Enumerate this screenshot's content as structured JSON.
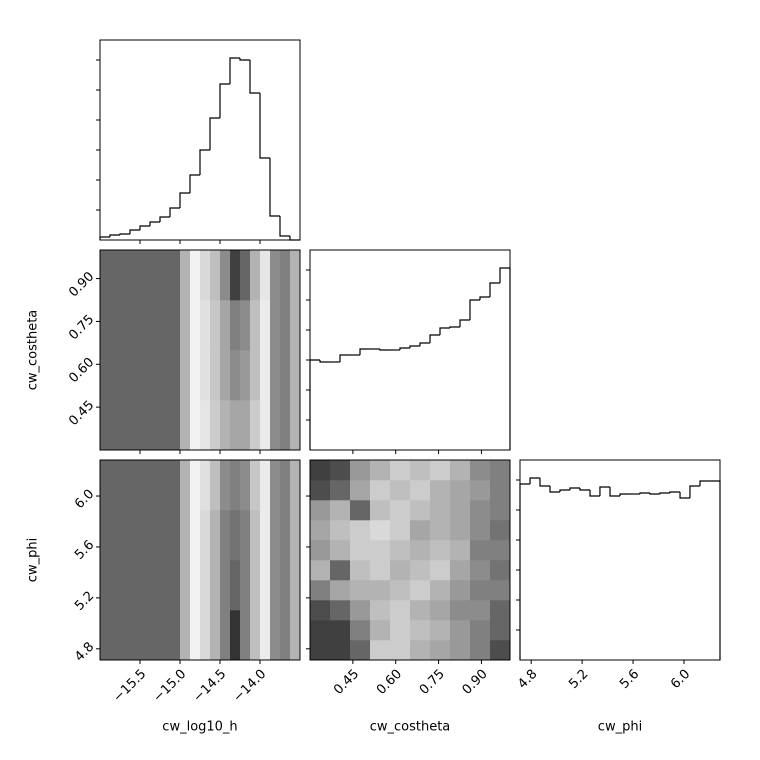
{
  "chart_data": [
    {
      "type": "histogram",
      "color": "#000000",
      "bins": [
        -16,
        -15.875,
        -15.75,
        -15.625,
        -15.5,
        -15.375,
        -15.25,
        -15.125,
        -15,
        -14.875,
        -14.75,
        -14.625,
        -14.5,
        -14.375,
        -14.25,
        -14.125,
        -14,
        -13.875,
        -13.75,
        -13.625,
        -13.5
      ],
      "values": [
        3,
        5,
        6,
        10,
        14,
        18,
        23,
        32,
        47,
        65,
        90,
        122,
        156,
        182,
        180,
        147,
        82,
        24,
        4,
        0
      ],
      "xlim": [
        -16,
        -13.5
      ],
      "xticks": [
        -15.5,
        -15,
        -14.5,
        -14
      ],
      "ylim": [
        0,
        200
      ],
      "yticks": [
        30,
        60,
        90,
        120,
        150,
        180
      ]
    },
    {
      "type": "density",
      "xlim": [
        -16,
        -13.5
      ],
      "xticks": [
        -15.5,
        -15,
        -14.5,
        -14
      ],
      "ylim": [
        0.3,
        1.0
      ],
      "yticks": [
        {
          "value": 0.45,
          "label": "0.45"
        },
        {
          "value": 0.6,
          "label": "0.60"
        },
        {
          "value": 0.75,
          "label": "0.75"
        },
        {
          "value": 0.9,
          "label": "0.90"
        }
      ],
      "ylabel": "cw_costheta",
      "z": [
        [
          0.6,
          0.6,
          0.6,
          0.6,
          0.6,
          0.6,
          0.6,
          0.6,
          0.3,
          0.05,
          0.1,
          0.2,
          0.3,
          0.35,
          0.35,
          0.2,
          0.08,
          0.45,
          0.5,
          0.3
        ],
        [
          0.6,
          0.6,
          0.6,
          0.6,
          0.6,
          0.6,
          0.6,
          0.6,
          0.3,
          0.05,
          0.12,
          0.22,
          0.35,
          0.45,
          0.4,
          0.25,
          0.08,
          0.45,
          0.5,
          0.3
        ],
        [
          0.6,
          0.6,
          0.6,
          0.6,
          0.6,
          0.6,
          0.6,
          0.6,
          0.3,
          0.05,
          0.12,
          0.22,
          0.35,
          0.5,
          0.45,
          0.25,
          0.08,
          0.45,
          0.5,
          0.3
        ],
        [
          0.6,
          0.6,
          0.6,
          0.6,
          0.6,
          0.6,
          0.6,
          0.6,
          0.3,
          0.05,
          0.15,
          0.25,
          0.45,
          0.75,
          0.6,
          0.3,
          0.1,
          0.45,
          0.5,
          0.3
        ]
      ]
    },
    {
      "type": "histogram",
      "color": "#000000",
      "bins": [
        0.3,
        0.335,
        0.37,
        0.405,
        0.44,
        0.475,
        0.51,
        0.545,
        0.58,
        0.615,
        0.65,
        0.685,
        0.72,
        0.755,
        0.79,
        0.825,
        0.86,
        0.895,
        0.93,
        0.965,
        1.0
      ],
      "values": [
        90,
        88,
        88,
        95,
        95,
        101,
        101,
        100,
        100,
        102,
        104,
        107,
        115,
        122,
        123,
        130,
        150,
        153,
        167,
        182
      ],
      "xlim": [
        0.3,
        1.0
      ],
      "xticks": [
        0.45,
        0.6,
        0.75,
        0.9
      ],
      "ylim": [
        0,
        200
      ],
      "yticks": [
        30,
        60,
        90,
        120,
        150,
        180
      ]
    },
    {
      "type": "density",
      "xlim": [
        -16,
        -13.5
      ],
      "xticks": [
        {
          "value": -15.5,
          "label": "−15.5"
        },
        {
          "value": -15,
          "label": "−15.0"
        },
        {
          "value": -14.5,
          "label": "−14.5"
        },
        {
          "value": -14,
          "label": "−14.0"
        }
      ],
      "xlabel": "cw_log10_h",
      "ylim": [
        4.712,
        6.283
      ],
      "yticks": [
        4.8,
        5.2,
        5.6,
        {
          "value": 6,
          "label": "6.0"
        }
      ],
      "ylabel": "cw_phi",
      "z": [
        [
          0.6,
          0.6,
          0.6,
          0.6,
          0.6,
          0.6,
          0.6,
          0.6,
          0.3,
          0.05,
          0.15,
          0.3,
          0.5,
          0.8,
          0.5,
          0.25,
          0.08,
          0.45,
          0.5,
          0.3
        ],
        [
          0.6,
          0.6,
          0.6,
          0.6,
          0.6,
          0.6,
          0.6,
          0.6,
          0.3,
          0.05,
          0.15,
          0.3,
          0.5,
          0.6,
          0.5,
          0.25,
          0.08,
          0.45,
          0.5,
          0.3
        ],
        [
          0.6,
          0.6,
          0.6,
          0.6,
          0.6,
          0.6,
          0.6,
          0.6,
          0.3,
          0.05,
          0.15,
          0.3,
          0.5,
          0.55,
          0.5,
          0.25,
          0.08,
          0.45,
          0.5,
          0.3
        ],
        [
          0.6,
          0.6,
          0.6,
          0.6,
          0.6,
          0.6,
          0.6,
          0.6,
          0.3,
          0.05,
          0.12,
          0.25,
          0.45,
          0.5,
          0.45,
          0.22,
          0.08,
          0.45,
          0.5,
          0.3
        ]
      ]
    },
    {
      "type": "density",
      "xlim": [
        0.3,
        1.0
      ],
      "xticks": [
        {
          "value": 0.45,
          "label": "0.45"
        },
        {
          "value": 0.6,
          "label": "0.60"
        },
        {
          "value": 0.75,
          "label": "0.75"
        },
        {
          "value": 0.9,
          "label": "0.90"
        }
      ],
      "xlabel": "cw_costheta",
      "ylim": [
        4.712,
        6.283
      ],
      "yticks": [
        4.8,
        5.2,
        5.6,
        6
      ],
      "z": [
        [
          0.75,
          0.75,
          0.6,
          0.2,
          0.2,
          0.3,
          0.35,
          0.4,
          0.5,
          0.7
        ],
        [
          0.75,
          0.75,
          0.5,
          0.3,
          0.2,
          0.25,
          0.3,
          0.4,
          0.5,
          0.6
        ],
        [
          0.7,
          0.6,
          0.4,
          0.25,
          0.2,
          0.3,
          0.35,
          0.45,
          0.45,
          0.6
        ],
        [
          0.5,
          0.35,
          0.3,
          0.3,
          0.25,
          0.2,
          0.3,
          0.4,
          0.5,
          0.5
        ],
        [
          0.3,
          0.6,
          0.25,
          0.2,
          0.3,
          0.25,
          0.2,
          0.35,
          0.45,
          0.55
        ],
        [
          0.4,
          0.3,
          0.2,
          0.2,
          0.25,
          0.3,
          0.25,
          0.3,
          0.5,
          0.5
        ],
        [
          0.35,
          0.25,
          0.2,
          0.15,
          0.2,
          0.35,
          0.3,
          0.35,
          0.45,
          0.55
        ],
        [
          0.4,
          0.3,
          0.6,
          0.25,
          0.2,
          0.25,
          0.3,
          0.35,
          0.45,
          0.5
        ],
        [
          0.7,
          0.6,
          0.35,
          0.2,
          0.25,
          0.2,
          0.3,
          0.35,
          0.4,
          0.5
        ],
        [
          0.75,
          0.7,
          0.4,
          0.3,
          0.2,
          0.25,
          0.2,
          0.3,
          0.45,
          0.5
        ]
      ]
    },
    {
      "type": "histogram",
      "color": "#000000",
      "bins": [
        4.712,
        4.791,
        4.869,
        4.948,
        5.026,
        5.105,
        5.183,
        5.262,
        5.34,
        5.419,
        5.498,
        5.576,
        5.655,
        5.733,
        5.812,
        5.89,
        5.969,
        6.047,
        6.126,
        6.204,
        6.283
      ],
      "values": [
        176,
        182,
        174,
        168,
        170,
        172,
        170,
        164,
        173,
        164,
        166,
        166,
        167,
        166,
        167,
        168,
        162,
        174,
        179,
        179
      ],
      "xlim": [
        4.712,
        6.283
      ],
      "xticks": [
        {
          "value": 4.8,
          "label": "4.8"
        },
        {
          "value": 5.2,
          "label": "5.2"
        },
        {
          "value": 5.6,
          "label": "5.6"
        },
        {
          "value": 6,
          "label": "6.0"
        }
      ],
      "xlabel": "cw_phi",
      "ylim": [
        0,
        200
      ],
      "yticks": [
        30,
        60,
        90,
        120,
        150,
        180
      ]
    }
  ]
}
